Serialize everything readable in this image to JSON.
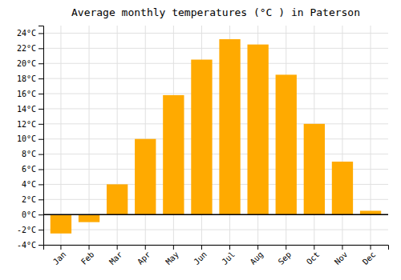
{
  "chart_data": {
    "type": "bar",
    "title": "Average monthly temperatures (°C ) in Paterson",
    "categories": [
      "Jan",
      "Feb",
      "Mar",
      "Apr",
      "May",
      "Jun",
      "Jul",
      "Aug",
      "Sep",
      "Oct",
      "Nov",
      "Dec"
    ],
    "values": [
      -2.5,
      -1.0,
      4.0,
      10.0,
      15.8,
      20.5,
      23.2,
      22.5,
      18.5,
      12.0,
      7.0,
      0.5
    ],
    "color": "#FFAA00",
    "ylim": [
      -4,
      25
    ],
    "yticks": [
      {
        "value": -4,
        "label": "-4°C"
      },
      {
        "value": -2,
        "label": "-2°C"
      },
      {
        "value": 0,
        "label": "0°C"
      },
      {
        "value": 2,
        "label": "2°C"
      },
      {
        "value": 4,
        "label": "4°C"
      },
      {
        "value": 6,
        "label": "6°C"
      },
      {
        "value": 8,
        "label": "8°C"
      },
      {
        "value": 10,
        "label": "10°C"
      },
      {
        "value": 12,
        "label": "12°C"
      },
      {
        "value": 14,
        "label": "14°C"
      },
      {
        "value": 16,
        "label": "16°C"
      },
      {
        "value": 18,
        "label": "18°C"
      },
      {
        "value": 20,
        "label": "20°C"
      },
      {
        "value": 22,
        "label": "22°C"
      },
      {
        "value": 24,
        "label": "24°C"
      }
    ],
    "grid": true
  }
}
